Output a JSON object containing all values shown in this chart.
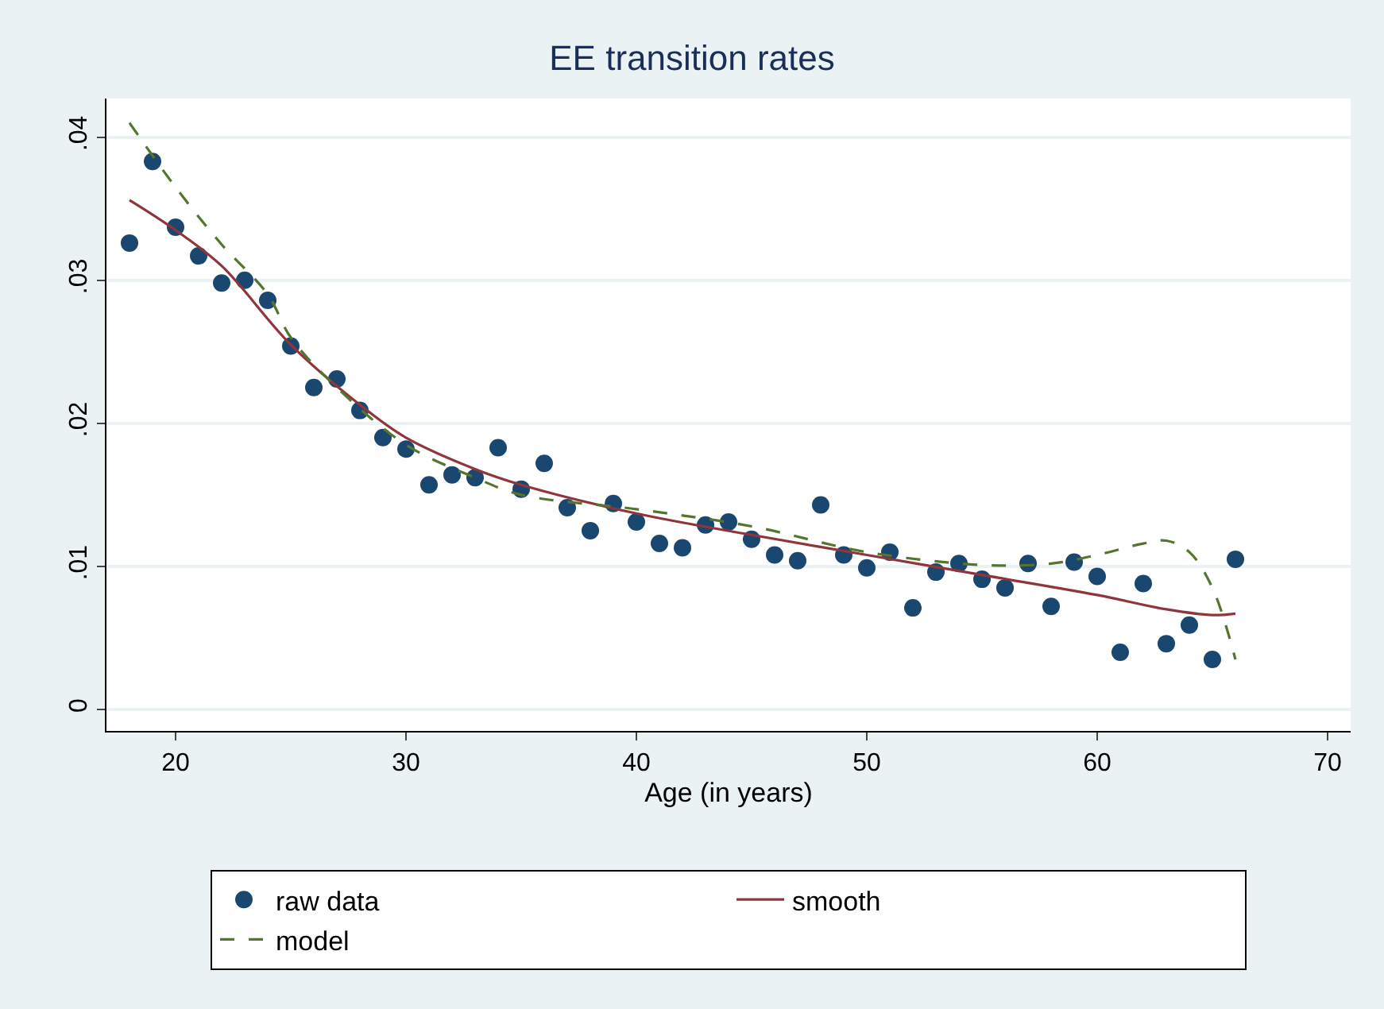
{
  "chart_data": {
    "type": "scatter",
    "title": "EE transition rates",
    "xlabel": "Age (in years)",
    "xlim": [
      17,
      71
    ],
    "xticks": [
      20,
      30,
      40,
      50,
      60,
      70
    ],
    "ylim": [
      -0.0015,
      0.0427
    ],
    "yticks": [
      {
        "value": 0,
        "label": "0"
      },
      {
        "value": 0.01,
        "label": ".01"
      },
      {
        "value": 0.02,
        "label": ".02"
      },
      {
        "value": 0.03,
        "label": ".03"
      },
      {
        "value": 0.04,
        "label": ".04"
      }
    ],
    "grid": "y",
    "legend": "bottom",
    "series": [
      {
        "name": "raw data",
        "marker": "circle",
        "color": "#1a476f",
        "x": [
          18,
          19,
          20,
          21,
          22,
          23,
          24,
          25,
          26,
          27,
          28,
          29,
          30,
          31,
          32,
          33,
          34,
          35,
          36,
          37,
          38,
          39,
          40,
          41,
          42,
          43,
          44,
          45,
          46,
          47,
          48,
          49,
          50,
          51,
          52,
          53,
          54,
          55,
          56,
          57,
          58,
          59,
          60,
          61,
          62,
          63,
          64,
          65,
          66
        ],
        "values": [
          0.0326,
          0.0383,
          0.0337,
          0.0317,
          0.0298,
          0.03,
          0.0286,
          0.0254,
          0.0225,
          0.0231,
          0.0209,
          0.019,
          0.0182,
          0.0157,
          0.0164,
          0.0162,
          0.0183,
          0.0154,
          0.0172,
          0.0141,
          0.0125,
          0.0144,
          0.0131,
          0.0116,
          0.0113,
          0.0129,
          0.0131,
          0.0119,
          0.0108,
          0.0104,
          0.0143,
          0.0108,
          0.0099,
          0.011,
          0.0071,
          0.0096,
          0.0102,
          0.0091,
          0.0085,
          0.0102,
          0.0072,
          0.0103,
          0.0093,
          0.004,
          0.0088,
          0.0046,
          0.0059,
          0.0035,
          0.0105
        ]
      },
      {
        "name": "smooth",
        "type": "line",
        "line_style": "solid",
        "color": "#90353b",
        "x": [
          18,
          20,
          22,
          25,
          28,
          30,
          33,
          35,
          40,
          45,
          50,
          55,
          60,
          63,
          65,
          66
        ],
        "values": [
          0.0356,
          0.0335,
          0.031,
          0.0255,
          0.0213,
          0.019,
          0.0168,
          0.0157,
          0.0137,
          0.0122,
          0.0108,
          0.0094,
          0.008,
          0.007,
          0.0066,
          0.0067
        ]
      },
      {
        "name": "model",
        "type": "line",
        "line_style": "dashed",
        "color": "#55752f",
        "x": [
          18,
          20,
          22,
          24,
          25,
          27,
          30,
          33,
          35,
          40,
          45,
          50,
          55,
          58,
          60,
          62,
          63,
          64,
          65,
          66
        ],
        "values": [
          0.041,
          0.0365,
          0.0325,
          0.029,
          0.026,
          0.0225,
          0.0185,
          0.0162,
          0.015,
          0.014,
          0.0128,
          0.011,
          0.0101,
          0.0102,
          0.0108,
          0.0116,
          0.0118,
          0.011,
          0.0085,
          0.0035
        ]
      }
    ]
  }
}
